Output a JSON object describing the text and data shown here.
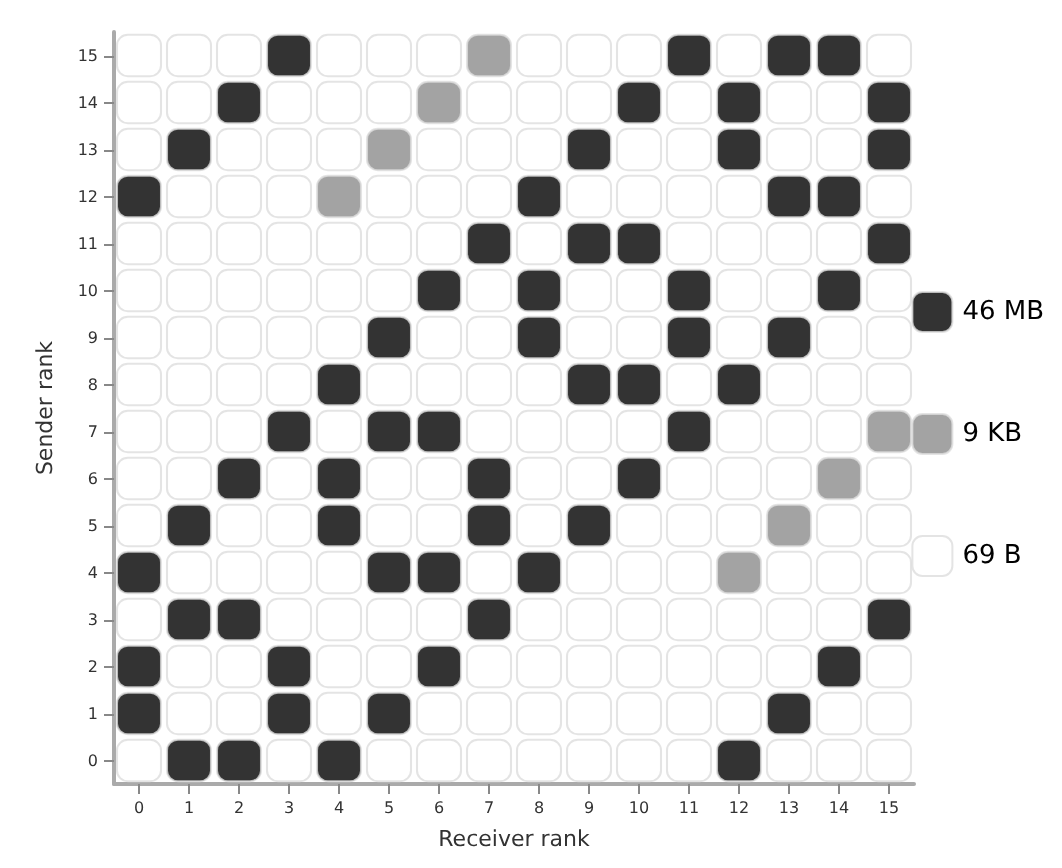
{
  "chart_data": {
    "type": "scatter",
    "xlabel": "Receiver rank",
    "ylabel": "Sender rank",
    "marker": "square",
    "legend": "right",
    "grid": false,
    "xlim": [
      -0.5,
      15.5
    ],
    "xticks": [
      0,
      1,
      2,
      3,
      4,
      5,
      6,
      7,
      8,
      9,
      10,
      11,
      12,
      13,
      14,
      15
    ],
    "ylim": [
      -0.5,
      15.5
    ],
    "yticks": [
      0,
      1,
      2,
      3,
      4,
      5,
      6,
      7,
      8,
      9,
      10,
      11,
      12,
      13,
      14,
      15
    ],
    "series": [
      {
        "name": "46 MB",
        "color": "#000000",
        "x": [
          3,
          11,
          13,
          14,
          2,
          10,
          12,
          15,
          1,
          9,
          12,
          15,
          0,
          8,
          13,
          14,
          7,
          9,
          10,
          15,
          6,
          8,
          11,
          14,
          5,
          8,
          11,
          13,
          4,
          9,
          10,
          12,
          3,
          5,
          6,
          11,
          2,
          4,
          7,
          10,
          1,
          4,
          7,
          9,
          0,
          5,
          6,
          8,
          1,
          2,
          7,
          15,
          0,
          3,
          6,
          14,
          0,
          3,
          5,
          13,
          1,
          2,
          4,
          12
        ],
        "values": [
          15,
          15,
          15,
          15,
          14,
          14,
          14,
          14,
          13,
          13,
          13,
          13,
          12,
          12,
          12,
          12,
          11,
          11,
          11,
          11,
          10,
          10,
          10,
          10,
          9,
          9,
          9,
          9,
          8,
          8,
          8,
          8,
          7,
          7,
          7,
          7,
          6,
          6,
          6,
          6,
          5,
          5,
          5,
          5,
          4,
          4,
          4,
          4,
          3,
          3,
          3,
          3,
          2,
          2,
          2,
          2,
          1,
          1,
          1,
          1,
          0,
          0,
          0,
          0
        ]
      },
      {
        "name": "9 KB",
        "color": "#8c8c8c",
        "x": [
          7,
          6,
          5,
          4,
          15,
          14,
          13,
          12
        ],
        "values": [
          15,
          14,
          13,
          12,
          7,
          6,
          5,
          4
        ]
      },
      {
        "name": "69 B",
        "color": "#ffffff",
        "x": [
          0,
          1,
          2,
          4,
          5,
          6,
          8,
          9,
          10,
          12,
          15,
          0,
          1,
          3,
          4,
          5,
          7,
          8,
          9,
          11,
          13,
          14,
          0,
          2,
          3,
          4,
          6,
          7,
          8,
          10,
          11,
          13,
          14,
          1,
          2,
          3,
          5,
          6,
          7,
          9,
          10,
          11,
          12,
          15,
          0,
          1,
          2,
          3,
          4,
          5,
          6,
          8,
          11,
          12,
          13,
          14,
          0,
          1,
          2,
          3,
          4,
          5,
          7,
          9,
          10,
          12,
          13,
          15,
          0,
          1,
          2,
          3,
          4,
          6,
          7,
          9,
          10,
          12,
          14,
          15,
          0,
          1,
          2,
          3,
          5,
          6,
          7,
          8,
          11,
          13,
          14,
          15,
          0,
          1,
          2,
          4,
          7,
          8,
          9,
          10,
          12,
          13,
          14,
          0,
          1,
          3,
          5,
          6,
          8,
          9,
          11,
          12,
          13,
          15,
          0,
          2,
          3,
          5,
          6,
          8,
          10,
          11,
          12,
          14,
          15,
          1,
          2,
          3,
          4,
          7,
          9,
          10,
          11,
          13,
          14,
          15,
          0,
          3,
          4,
          5,
          6,
          8,
          9,
          10,
          11,
          12,
          13,
          14,
          1,
          2,
          4,
          5,
          7,
          8,
          9,
          10,
          11,
          12,
          13,
          15,
          1,
          2,
          4,
          6,
          7,
          8,
          9,
          10,
          11,
          12,
          14,
          15,
          0,
          3,
          5,
          6,
          7,
          8,
          9,
          10,
          11,
          13,
          14,
          15
        ],
        "values": [
          15,
          15,
          15,
          15,
          15,
          15,
          15,
          15,
          15,
          15,
          15,
          14,
          14,
          14,
          14,
          14,
          14,
          14,
          14,
          14,
          14,
          14,
          13,
          13,
          13,
          13,
          13,
          13,
          13,
          13,
          13,
          13,
          13,
          12,
          12,
          12,
          12,
          12,
          12,
          12,
          12,
          12,
          12,
          12,
          11,
          11,
          11,
          11,
          11,
          11,
          11,
          11,
          11,
          11,
          11,
          11,
          10,
          10,
          10,
          10,
          10,
          10,
          10,
          10,
          10,
          10,
          10,
          10,
          9,
          9,
          9,
          9,
          9,
          9,
          9,
          9,
          9,
          9,
          9,
          9,
          8,
          8,
          8,
          8,
          8,
          8,
          8,
          8,
          8,
          8,
          8,
          8,
          7,
          7,
          7,
          7,
          7,
          7,
          7,
          7,
          7,
          7,
          7,
          6,
          6,
          6,
          6,
          6,
          6,
          6,
          6,
          6,
          6,
          6,
          5,
          5,
          5,
          5,
          5,
          5,
          5,
          5,
          5,
          5,
          5,
          4,
          4,
          4,
          4,
          4,
          4,
          4,
          4,
          4,
          4,
          4,
          3,
          3,
          3,
          3,
          3,
          3,
          3,
          3,
          3,
          3,
          3,
          3,
          2,
          2,
          2,
          2,
          2,
          2,
          2,
          2,
          2,
          2,
          2,
          2,
          1,
          1,
          1,
          1,
          1,
          1,
          1,
          1,
          1,
          1,
          1,
          1,
          0,
          0,
          0,
          0,
          0,
          0,
          0,
          0,
          0,
          0,
          0,
          0
        ]
      }
    ]
  }
}
